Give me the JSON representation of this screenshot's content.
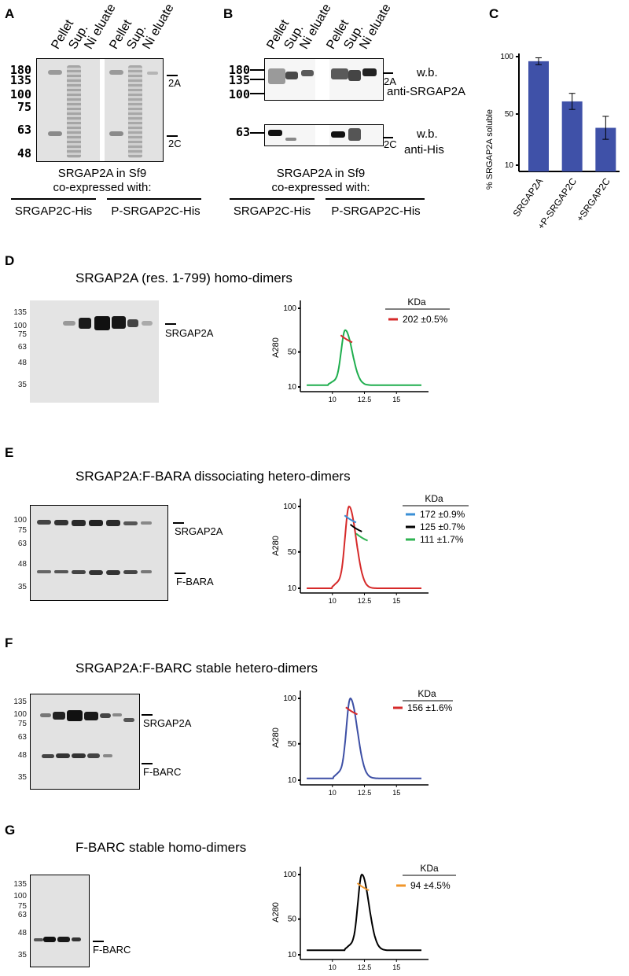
{
  "panelA": {
    "letter": "A",
    "columns": [
      "Pellet",
      "Sup.",
      "Ni eluate",
      "Pellet",
      "Sup.",
      "Ni eluate"
    ],
    "mw_markers": [
      "180",
      "135",
      "100",
      "75",
      "63",
      "48"
    ],
    "band_labels": [
      "2A",
      "2C"
    ],
    "caption_line1": "SRGAP2A in Sf9",
    "caption_line2": "co-expressed with:",
    "group_left": "SRGAP2C-His",
    "group_right": "P-SRGAP2C-His"
  },
  "panelB": {
    "letter": "B",
    "columns": [
      "Pellet",
      "Sup.",
      "Ni eluate",
      "Pellet",
      "Sup.",
      "Ni eluate"
    ],
    "mw_top": [
      "180",
      "135",
      "100"
    ],
    "mw_bottom": [
      "63"
    ],
    "band_labels": [
      "2A",
      "2C"
    ],
    "wb_top_line1": "w.b.",
    "wb_top_line2": "anti-SRGAP2A",
    "wb_bottom_line1": "w.b.",
    "wb_bottom_line2": "anti-His",
    "caption_line1": "SRGAP2A in Sf9",
    "caption_line2": "co-expressed with:",
    "group_left": "SRGAP2C-His",
    "group_right": "P-SRGAP2C-His"
  },
  "panelC": {
    "letter": "C",
    "chart_data": {
      "type": "bar",
      "categories": [
        "SRGAP2A",
        "+P-SRGAP2C",
        "+SRGAP2C"
      ],
      "values": [
        96,
        61,
        38
      ],
      "errors": [
        3,
        7,
        10
      ],
      "ylabel": "% SRGAP2A  soluble",
      "yticks": [
        "10",
        "50",
        "100"
      ],
      "ylim": [
        0,
        100
      ],
      "bar_color": "#3f51a8"
    }
  },
  "panelD": {
    "letter": "D",
    "title": "SRGAP2A (res. 1-799) homo-dimers",
    "mw_markers": [
      "135",
      "100",
      "75",
      "63",
      "48",
      "35"
    ],
    "band_labels": [
      "SRGAP2A"
    ],
    "chart_data": {
      "type": "line",
      "ylabel": "A280",
      "yticks": [
        "10",
        "50",
        "100"
      ],
      "xticks": [
        "10",
        "12.5",
        "15"
      ],
      "legend_header": "KDa",
      "series": [
        {
          "name": "202 ±0.5%",
          "color": "#d62a2a",
          "role": "mass"
        },
        {
          "name": "",
          "color": "#1fae4e",
          "role": "trace",
          "peak_x": 11,
          "peak_y": 75,
          "baseline": 12
        }
      ]
    }
  },
  "panelE": {
    "letter": "E",
    "title": "SRGAP2A:F-BARA dissociating hetero-dimers",
    "mw_markers": [
      "100",
      "75",
      "63",
      "48",
      "35"
    ],
    "band_labels": [
      "SRGAP2A",
      "F-BARA"
    ],
    "chart_data": {
      "type": "line",
      "ylabel": "A280",
      "yticks": [
        "10",
        "50",
        "100"
      ],
      "xticks": [
        "10",
        "12.5",
        "15"
      ],
      "legend_header": "KDa",
      "series": [
        {
          "name": "172 ±0.9%",
          "color": "#3a8fd6",
          "role": "mass"
        },
        {
          "name": "125 ±0.7%",
          "color": "#000000",
          "role": "mass"
        },
        {
          "name": "111 ±1.7%",
          "color": "#2fb352",
          "role": "mass"
        },
        {
          "name": "",
          "color": "#d62a2a",
          "role": "trace",
          "peak_x": 11.3,
          "peak_y": 100,
          "baseline": 10
        }
      ]
    }
  },
  "panelF": {
    "letter": "F",
    "title": "SRGAP2A:F-BARC stable hetero-dimers",
    "mw_markers": [
      "135",
      "100",
      "75",
      "63",
      "48",
      "35"
    ],
    "band_labels": [
      "SRGAP2A",
      "F-BARC"
    ],
    "chart_data": {
      "type": "line",
      "ylabel": "A280",
      "yticks": [
        "10",
        "50",
        "100"
      ],
      "xticks": [
        "10",
        "12.5",
        "15"
      ],
      "legend_header": "KDa",
      "series": [
        {
          "name": "156 ±1.6%",
          "color": "#d62a2a",
          "role": "mass"
        },
        {
          "name": "",
          "color": "#3d4fa5",
          "role": "trace",
          "peak_x": 11.4,
          "peak_y": 100,
          "baseline": 12
        }
      ]
    }
  },
  "panelG": {
    "letter": "G",
    "title": "F-BARC stable homo-dimers",
    "mw_markers": [
      "135",
      "100",
      "75",
      "63",
      "48",
      "35"
    ],
    "band_labels": [
      "F-BARC"
    ],
    "chart_data": {
      "type": "line",
      "ylabel": "A280",
      "yticks": [
        "10",
        "50",
        "100"
      ],
      "xticks": [
        "10",
        "12.5",
        "15"
      ],
      "legend_header": "KDa",
      "series": [
        {
          "name": "94 ±4.5%",
          "color": "#f0962a",
          "role": "mass"
        },
        {
          "name": "",
          "color": "#000000",
          "role": "trace",
          "peak_x": 12.3,
          "peak_y": 100,
          "baseline": 15
        }
      ]
    }
  }
}
